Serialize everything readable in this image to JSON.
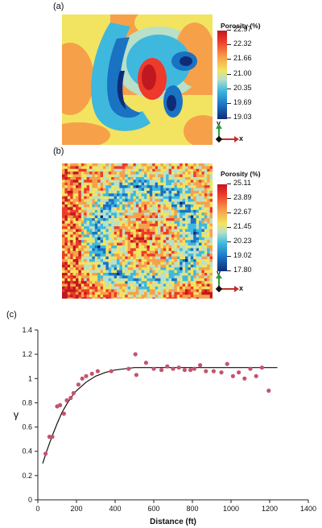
{
  "panels": {
    "a": {
      "label": "(a)",
      "colorbar_title": "Porosity (%)",
      "ticks": [
        "22.97",
        "22.32",
        "21.66",
        "21.00",
        "20.35",
        "19.69",
        "19.03"
      ],
      "axis_y": "y",
      "axis_x": "x"
    },
    "b": {
      "label": "(b)",
      "colorbar_title": "Porosity (%)",
      "ticks": [
        "25.11",
        "23.89",
        "22.67",
        "21.45",
        "20.23",
        "19.02",
        "17.80"
      ],
      "axis_y": "y",
      "axis_x": "x"
    },
    "c": {
      "label": "(c)"
    }
  },
  "chart_data": [
    {
      "type": "heatmap",
      "panel": "(a)",
      "colorbar_title": "Porosity (%)",
      "colorbar_ticks": [
        22.97,
        22.32,
        21.66,
        21.0,
        20.35,
        19.69,
        19.03
      ],
      "colormap": [
        "#0f2b76",
        "#1a72c3",
        "#3fb8de",
        "#b9e0c8",
        "#f2e460",
        "#f7a04a",
        "#ee3a2a",
        "#c01820"
      ]
    },
    {
      "type": "heatmap",
      "panel": "(b)",
      "colorbar_title": "Porosity (%)",
      "colorbar_ticks": [
        25.11,
        23.89,
        22.67,
        21.45,
        20.23,
        19.02,
        17.8
      ],
      "colormap": [
        "#0f2b76",
        "#1a72c3",
        "#3fb8de",
        "#b9e0c8",
        "#f2e460",
        "#f7a04a",
        "#ee3a2a",
        "#c01820"
      ]
    },
    {
      "type": "scatter",
      "panel": "(c)",
      "xlabel": "Distance (ft)",
      "ylabel": "γ",
      "xlim": [
        0,
        1400
      ],
      "ylim": [
        0,
        1.4
      ],
      "xticks": [
        0,
        200,
        400,
        600,
        800,
        1000,
        1200,
        1400
      ],
      "yticks": [
        0,
        0.2,
        0.4,
        0.6,
        0.8,
        1,
        1.2,
        1.4
      ],
      "points_color": "#c4546e",
      "curve_color": "#111111",
      "x": [
        40,
        60,
        75,
        100,
        115,
        135,
        150,
        170,
        185,
        210,
        230,
        250,
        280,
        310,
        380,
        470,
        505,
        510,
        560,
        600,
        640,
        670,
        700,
        730,
        760,
        790,
        810,
        840,
        870,
        910,
        950,
        980,
        1010,
        1040,
        1070,
        1100,
        1130,
        1160,
        1195
      ],
      "y": [
        0.38,
        0.52,
        0.52,
        0.77,
        0.78,
        0.71,
        0.82,
        0.84,
        0.88,
        0.95,
        1.0,
        1.02,
        1.04,
        1.06,
        1.06,
        1.08,
        1.2,
        1.03,
        1.13,
        1.08,
        1.07,
        1.1,
        1.08,
        1.09,
        1.07,
        1.07,
        1.08,
        1.11,
        1.06,
        1.06,
        1.05,
        1.12,
        1.02,
        1.05,
        1.0,
        1.08,
        1.02,
        1.09,
        0.9
      ],
      "model_curve": {
        "x": [
          25,
          50,
          75,
          100,
          125,
          150,
          175,
          200,
          250,
          300,
          350,
          400,
          450,
          500,
          600,
          700,
          800,
          900,
          1000,
          1100,
          1240
        ],
        "y": [
          0.3,
          0.42,
          0.53,
          0.63,
          0.72,
          0.79,
          0.85,
          0.9,
          0.97,
          1.02,
          1.05,
          1.07,
          1.08,
          1.09,
          1.09,
          1.09,
          1.09,
          1.09,
          1.09,
          1.09,
          1.09
        ]
      }
    }
  ]
}
